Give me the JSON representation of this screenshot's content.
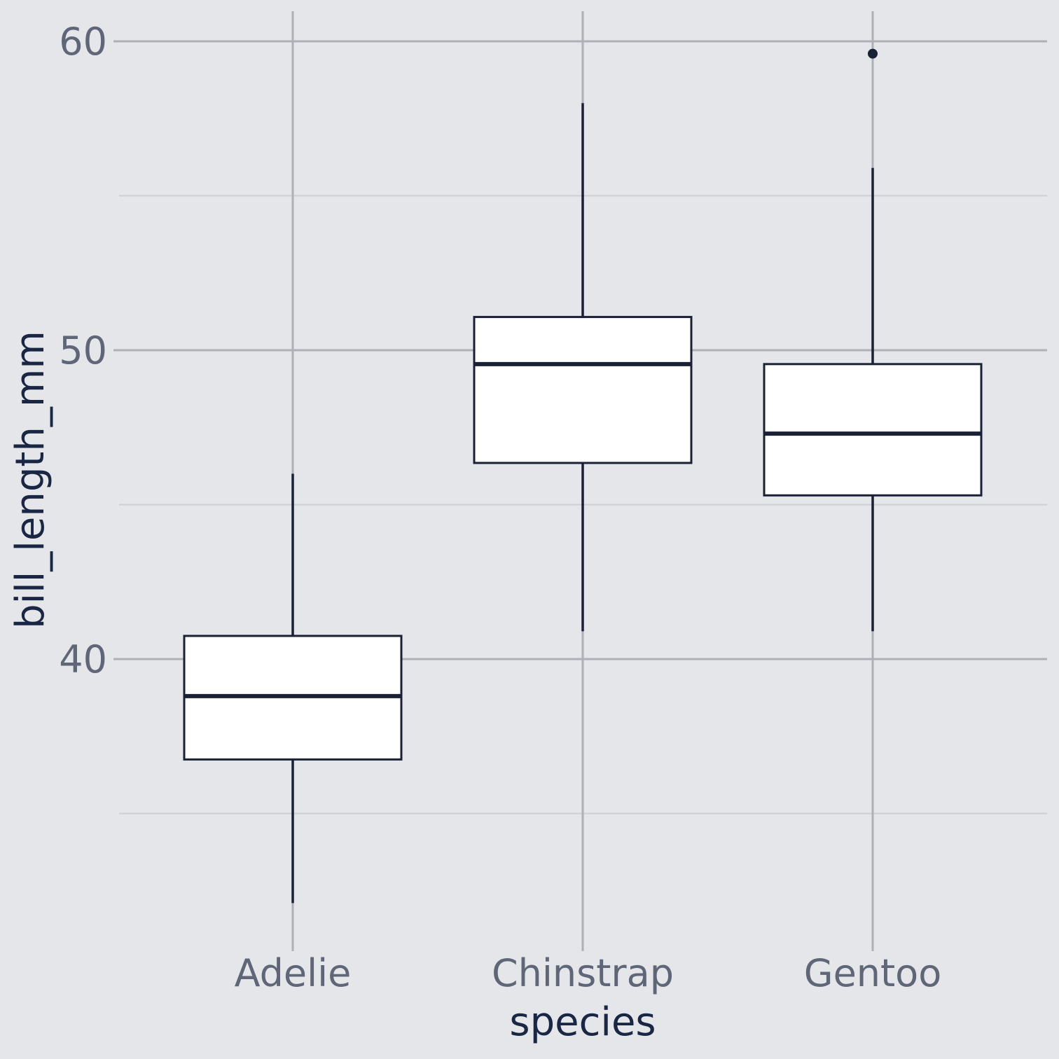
{
  "colors": {
    "background": "#E5E6EA",
    "panel": "#E5E6EA",
    "grid_major": "#AEB0B8",
    "grid_minor": "#CDCFD4",
    "box_fill": "#FFFFFF",
    "box_stroke": "#1A2035",
    "tick_text": "#5F6677",
    "axis_title_text": "#1A2744"
  },
  "chart_data": {
    "type": "box",
    "title": "",
    "xlabel": "species",
    "ylabel": "bill_length_mm",
    "categories": [
      "Adelie",
      "Chinstrap",
      "Gentoo"
    ],
    "y_ticks": [
      40,
      50,
      60
    ],
    "y_tick_labels": [
      "40",
      "50",
      "60"
    ],
    "ylim": [
      30.5,
      61.0
    ],
    "grid": true,
    "legend": "none",
    "boxes": [
      {
        "category": "Adelie",
        "whisker_low": 32.1,
        "q1": 36.75,
        "median": 38.8,
        "q3": 40.75,
        "whisker_high": 46.0,
        "outliers": []
      },
      {
        "category": "Chinstrap",
        "whisker_low": 40.9,
        "q1": 46.35,
        "median": 49.55,
        "q3": 51.075,
        "whisker_high": 58.0,
        "outliers": []
      },
      {
        "category": "Gentoo",
        "whisker_low": 40.9,
        "q1": 45.3,
        "median": 47.3,
        "q3": 49.55,
        "whisker_high": 55.9,
        "outliers": [
          59.6
        ]
      }
    ]
  }
}
